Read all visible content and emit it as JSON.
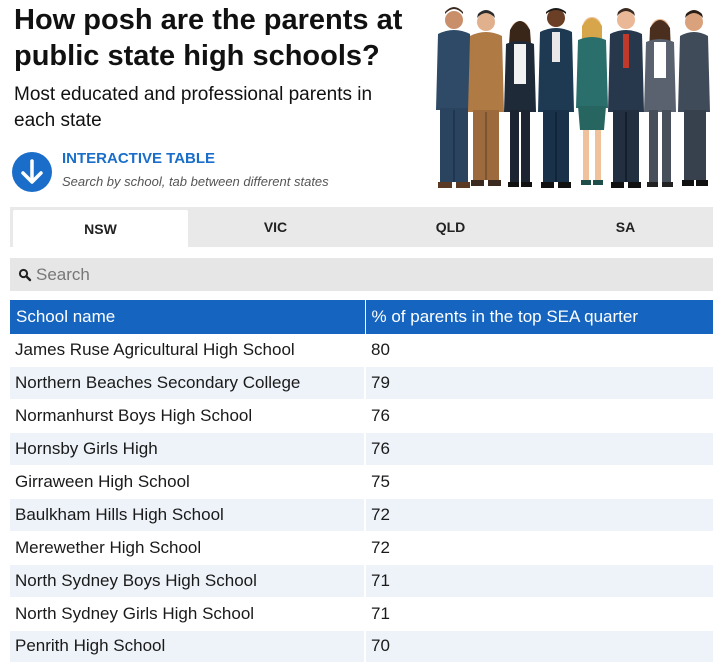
{
  "header": {
    "title": "How posh are the parents at public state high schools?",
    "subtitle": "Most educated and professional parents in each state",
    "cta_title": "INTERACTIVE TABLE",
    "cta_subtitle": "Search by school, tab between different states",
    "cta_icon": "arrow-down-icon",
    "illustration": "group-of-parents"
  },
  "tabs": [
    {
      "label": "NSW",
      "active": true
    },
    {
      "label": "VIC",
      "active": false
    },
    {
      "label": "QLD",
      "active": false
    },
    {
      "label": "SA",
      "active": false
    }
  ],
  "search": {
    "placeholder": "Search",
    "icon": "search-icon"
  },
  "table": {
    "columns": [
      "School name",
      "% of parents in the top SEA quarter"
    ],
    "rows": [
      [
        "James Ruse Agricultural High School",
        "80"
      ],
      [
        "Northern Beaches Secondary College",
        "79"
      ],
      [
        "Normanhurst Boys High School",
        "76"
      ],
      [
        "Hornsby Girls High",
        "76"
      ],
      [
        "Girraween High School",
        "75"
      ],
      [
        "Baulkham Hills High School",
        "72"
      ],
      [
        "Merewether High School",
        "72"
      ],
      [
        "North Sydney Boys High School",
        "71"
      ],
      [
        "North Sydney Girls High School",
        "71"
      ],
      [
        "Penrith High School",
        "70"
      ]
    ]
  },
  "colors": {
    "accent": "#1565c0",
    "link": "#1a6ec9",
    "tab_bg": "#e9e9e9",
    "row_alt": "#eef3f9"
  }
}
